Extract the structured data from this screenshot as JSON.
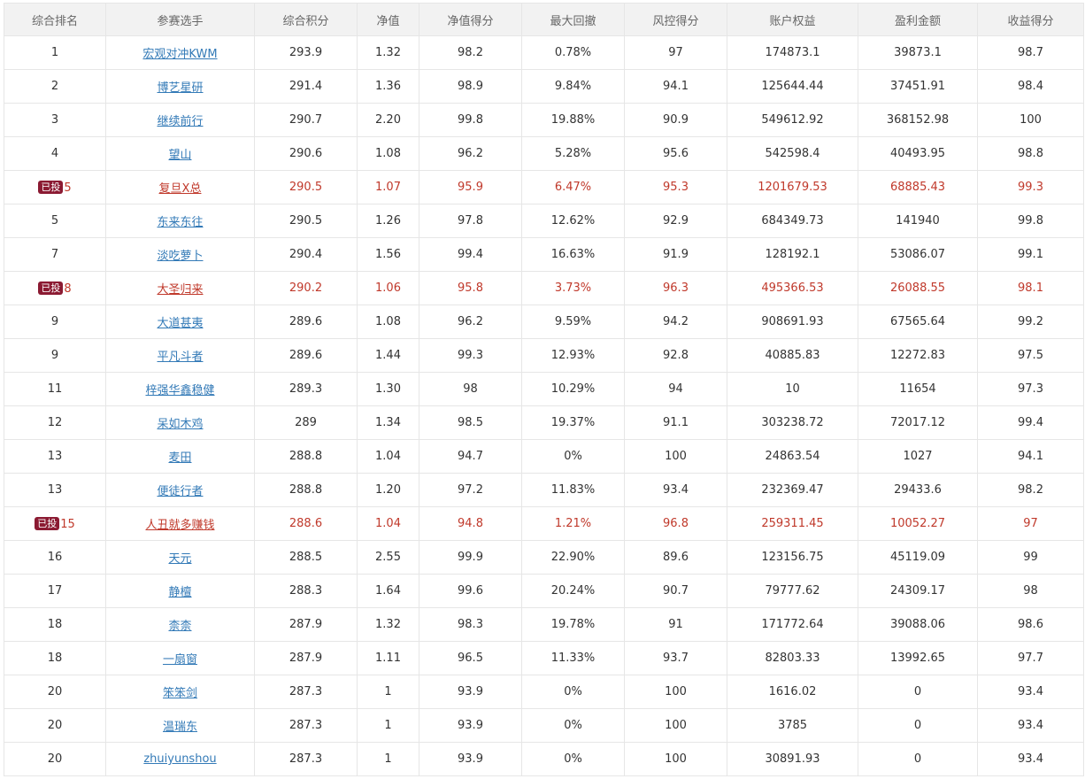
{
  "table": {
    "headers": [
      "综合排名",
      "参赛选手",
      "综合积分",
      "净值",
      "净值得分",
      "最大回撤",
      "风控得分",
      "账户权益",
      "盈利金额",
      "收益得分"
    ],
    "badge_text": "已投",
    "rows": [
      {
        "rank": "1",
        "name": "宏观对冲KWM",
        "score": "293.9",
        "nav": "1.32",
        "nav_score": "98.2",
        "drawdown": "0.78%",
        "risk_score": "97",
        "equity": "174873.1",
        "profit": "39873.1",
        "return_score": "98.7",
        "invested": false
      },
      {
        "rank": "2",
        "name": "博艺星研",
        "score": "291.4",
        "nav": "1.36",
        "nav_score": "98.9",
        "drawdown": "9.84%",
        "risk_score": "94.1",
        "equity": "125644.44",
        "profit": "37451.91",
        "return_score": "98.4",
        "invested": false
      },
      {
        "rank": "3",
        "name": "继续前行",
        "score": "290.7",
        "nav": "2.20",
        "nav_score": "99.8",
        "drawdown": "19.88%",
        "risk_score": "90.9",
        "equity": "549612.92",
        "profit": "368152.98",
        "return_score": "100",
        "invested": false
      },
      {
        "rank": "4",
        "name": "望山",
        "score": "290.6",
        "nav": "1.08",
        "nav_score": "96.2",
        "drawdown": "5.28%",
        "risk_score": "95.6",
        "equity": "542598.4",
        "profit": "40493.95",
        "return_score": "98.8",
        "invested": false
      },
      {
        "rank": "5",
        "name": "复旦X总",
        "score": "290.5",
        "nav": "1.07",
        "nav_score": "95.9",
        "drawdown": "6.47%",
        "risk_score": "95.3",
        "equity": "1201679.53",
        "profit": "68885.43",
        "return_score": "99.3",
        "invested": true
      },
      {
        "rank": "5",
        "name": "东来东往",
        "score": "290.5",
        "nav": "1.26",
        "nav_score": "97.8",
        "drawdown": "12.62%",
        "risk_score": "92.9",
        "equity": "684349.73",
        "profit": "141940",
        "return_score": "99.8",
        "invested": false
      },
      {
        "rank": "7",
        "name": "淡吃萝卜",
        "score": "290.4",
        "nav": "1.56",
        "nav_score": "99.4",
        "drawdown": "16.63%",
        "risk_score": "91.9",
        "equity": "128192.1",
        "profit": "53086.07",
        "return_score": "99.1",
        "invested": false
      },
      {
        "rank": "8",
        "name": "大圣归来",
        "score": "290.2",
        "nav": "1.06",
        "nav_score": "95.8",
        "drawdown": "3.73%",
        "risk_score": "96.3",
        "equity": "495366.53",
        "profit": "26088.55",
        "return_score": "98.1",
        "invested": true
      },
      {
        "rank": "9",
        "name": "大道甚夷",
        "score": "289.6",
        "nav": "1.08",
        "nav_score": "96.2",
        "drawdown": "9.59%",
        "risk_score": "94.2",
        "equity": "908691.93",
        "profit": "67565.64",
        "return_score": "99.2",
        "invested": false
      },
      {
        "rank": "9",
        "name": "平凡斗者",
        "score": "289.6",
        "nav": "1.44",
        "nav_score": "99.3",
        "drawdown": "12.93%",
        "risk_score": "92.8",
        "equity": "40885.83",
        "profit": "12272.83",
        "return_score": "97.5",
        "invested": false
      },
      {
        "rank": "11",
        "name": "梓强华鑫稳健",
        "score": "289.3",
        "nav": "1.30",
        "nav_score": "98",
        "drawdown": "10.29%",
        "risk_score": "94",
        "equity": "10",
        "profit": "11654",
        "return_score": "97.3",
        "invested": false
      },
      {
        "rank": "12",
        "name": "呆如木鸡",
        "score": "289",
        "nav": "1.34",
        "nav_score": "98.5",
        "drawdown": "19.37%",
        "risk_score": "91.1",
        "equity": "303238.72",
        "profit": "72017.12",
        "return_score": "99.4",
        "invested": false
      },
      {
        "rank": "13",
        "name": "麦田",
        "score": "288.8",
        "nav": "1.04",
        "nav_score": "94.7",
        "drawdown": "0%",
        "risk_score": "100",
        "equity": "24863.54",
        "profit": "1027",
        "return_score": "94.1",
        "invested": false
      },
      {
        "rank": "13",
        "name": "便徒行者",
        "score": "288.8",
        "nav": "1.20",
        "nav_score": "97.2",
        "drawdown": "11.83%",
        "risk_score": "93.4",
        "equity": "232369.47",
        "profit": "29433.6",
        "return_score": "98.2",
        "invested": false
      },
      {
        "rank": "15",
        "name": "人丑就多赚钱",
        "score": "288.6",
        "nav": "1.04",
        "nav_score": "94.8",
        "drawdown": "1.21%",
        "risk_score": "96.8",
        "equity": "259311.45",
        "profit": "10052.27",
        "return_score": "97",
        "invested": true
      },
      {
        "rank": "16",
        "name": "天元",
        "score": "288.5",
        "nav": "2.55",
        "nav_score": "99.9",
        "drawdown": "22.90%",
        "risk_score": "89.6",
        "equity": "123156.75",
        "profit": "45119.09",
        "return_score": "99",
        "invested": false
      },
      {
        "rank": "17",
        "name": "静檀",
        "score": "288.3",
        "nav": "1.64",
        "nav_score": "99.6",
        "drawdown": "20.24%",
        "risk_score": "90.7",
        "equity": "79777.62",
        "profit": "24309.17",
        "return_score": "98",
        "invested": false
      },
      {
        "rank": "18",
        "name": "柰柰",
        "score": "287.9",
        "nav": "1.32",
        "nav_score": "98.3",
        "drawdown": "19.78%",
        "risk_score": "91",
        "equity": "171772.64",
        "profit": "39088.06",
        "return_score": "98.6",
        "invested": false
      },
      {
        "rank": "18",
        "name": "一扇窗",
        "score": "287.9",
        "nav": "1.11",
        "nav_score": "96.5",
        "drawdown": "11.33%",
        "risk_score": "93.7",
        "equity": "82803.33",
        "profit": "13992.65",
        "return_score": "97.7",
        "invested": false
      },
      {
        "rank": "20",
        "name": "笨笨剑",
        "score": "287.3",
        "nav": "1",
        "nav_score": "93.9",
        "drawdown": "0%",
        "risk_score": "100",
        "equity": "1616.02",
        "profit": "0",
        "return_score": "93.4",
        "invested": false
      },
      {
        "rank": "20",
        "name": "温瑞东",
        "score": "287.3",
        "nav": "1",
        "nav_score": "93.9",
        "drawdown": "0%",
        "risk_score": "100",
        "equity": "3785",
        "profit": "0",
        "return_score": "93.4",
        "invested": false
      },
      {
        "rank": "20",
        "name": "zhuiyunshou",
        "score": "287.3",
        "nav": "1",
        "nav_score": "93.9",
        "drawdown": "0%",
        "risk_score": "100",
        "equity": "30891.93",
        "profit": "0",
        "return_score": "93.4",
        "invested": false
      }
    ]
  },
  "colors": {
    "link": "#337ab7",
    "invested_text": "#c0392b",
    "badge_bg": "#8b1a32",
    "header_bg": "#f2f2f2",
    "border": "#e6e6e6"
  }
}
